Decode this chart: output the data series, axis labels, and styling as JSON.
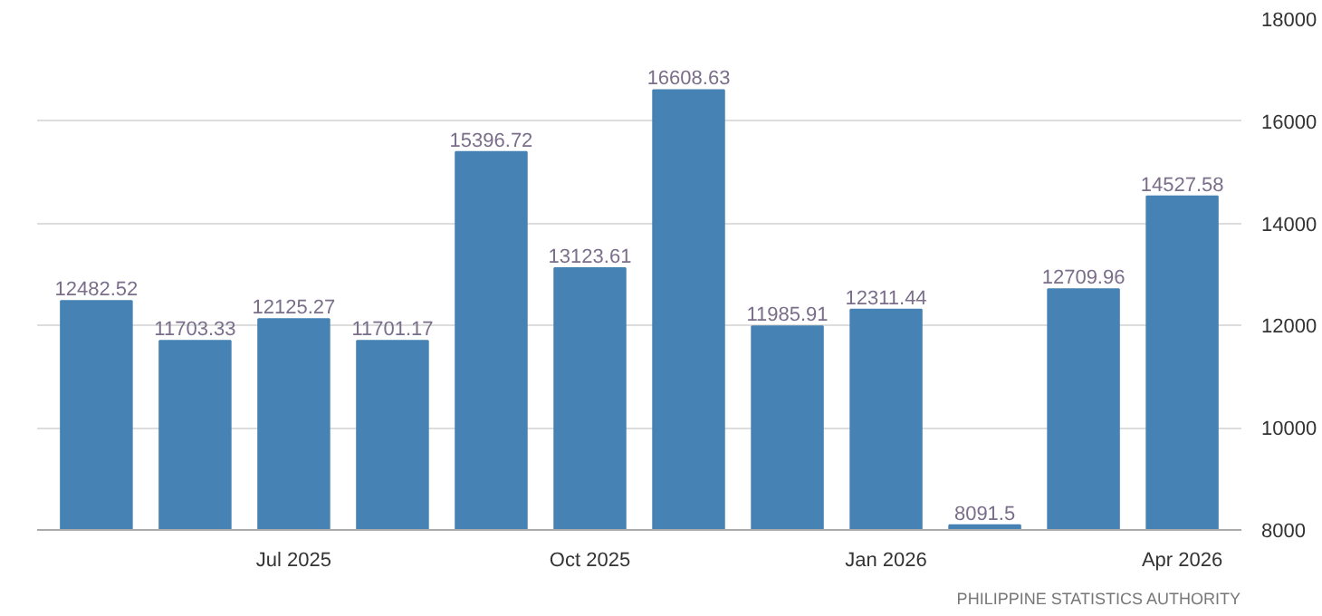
{
  "chart_data": {
    "type": "bar",
    "categories": [
      null,
      null,
      "Jul 2025",
      null,
      null,
      "Oct 2025",
      null,
      null,
      "Jan 2026",
      null,
      null,
      "Apr 2026"
    ],
    "values": [
      12482.52,
      11703.33,
      12125.27,
      11701.17,
      15396.72,
      13123.61,
      16608.63,
      11985.91,
      12311.44,
      8091.5,
      12709.96,
      14527.58
    ],
    "color": "#4682b4",
    "data_labels": true,
    "ylim": [
      8000,
      18000
    ],
    "yticks": [
      8000,
      10000,
      12000,
      14000,
      16000,
      18000
    ],
    "grid": "y",
    "annotations": [
      "PHILIPPINE STATISTICS AUTHORITY"
    ]
  }
}
